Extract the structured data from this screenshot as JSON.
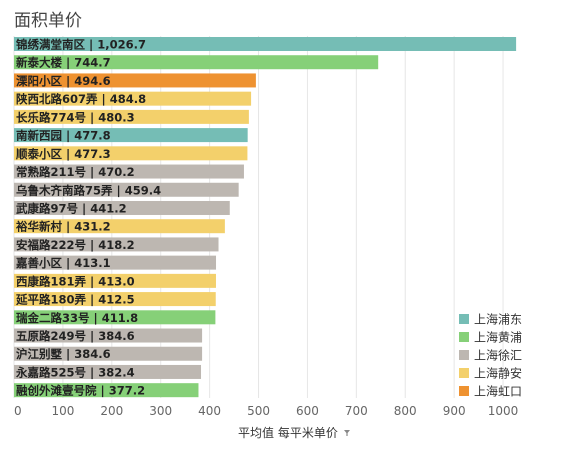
{
  "chart_data": {
    "type": "bar",
    "orientation": "horizontal",
    "title": "面积单价",
    "xlabel": "平均值 每平米单价",
    "ylabel": "",
    "xlim": [
      0,
      1050
    ],
    "xticks": [
      0,
      100,
      200,
      300,
      400,
      500,
      600,
      700,
      800,
      900,
      1000
    ],
    "grid": true,
    "legend_position": "bottom-right",
    "legend": [
      {
        "name": "上海浦东",
        "color": "#75BDB5"
      },
      {
        "name": "上海黄浦",
        "color": "#86D078"
      },
      {
        "name": "上海徐汇",
        "color": "#BDB7B1"
      },
      {
        "name": "上海静安",
        "color": "#F3D06B"
      },
      {
        "name": "上海虹口",
        "color": "#EE9231"
      }
    ],
    "bars": [
      {
        "label": "锦绣满堂南区 | 1,026.7",
        "category": "锦绣满堂南区",
        "value": 1026.7,
        "group": "上海浦东",
        "color": "#75BDB5"
      },
      {
        "label": "新泰大楼 | 744.7",
        "category": "新泰大楼",
        "value": 744.7,
        "group": "上海黄浦",
        "color": "#86D078"
      },
      {
        "label": "溧阳小区 | 494.6",
        "category": "溧阳小区",
        "value": 494.6,
        "group": "上海虹口",
        "color": "#EE9231"
      },
      {
        "label": "陕西北路607弄 | 484.8",
        "category": "陕西北路607弄",
        "value": 484.8,
        "group": "上海静安",
        "color": "#F3D06B"
      },
      {
        "label": "长乐路774号 | 480.3",
        "category": "长乐路774号",
        "value": 480.3,
        "group": "上海静安",
        "color": "#F3D06B"
      },
      {
        "label": "南新西园 | 477.8",
        "category": "南新西园",
        "value": 477.8,
        "group": "上海浦东",
        "color": "#75BDB5"
      },
      {
        "label": "顺泰小区 | 477.3",
        "category": "顺泰小区",
        "value": 477.3,
        "group": "上海静安",
        "color": "#F3D06B"
      },
      {
        "label": "常熟路211号 | 470.2",
        "category": "常熟路211号",
        "value": 470.2,
        "group": "上海徐汇",
        "color": "#BDB7B1"
      },
      {
        "label": "乌鲁木齐南路75弄 | 459.4",
        "category": "乌鲁木齐南路75弄",
        "value": 459.4,
        "group": "上海徐汇",
        "color": "#BDB7B1"
      },
      {
        "label": "武康路97号 | 441.2",
        "category": "武康路97号",
        "value": 441.2,
        "group": "上海徐汇",
        "color": "#BDB7B1"
      },
      {
        "label": "裕华新村 | 431.2",
        "category": "裕华新村",
        "value": 431.2,
        "group": "上海静安",
        "color": "#F3D06B"
      },
      {
        "label": "安福路222号 | 418.2",
        "category": "安福路222号",
        "value": 418.2,
        "group": "上海徐汇",
        "color": "#BDB7B1"
      },
      {
        "label": "嘉善小区 | 413.1",
        "category": "嘉善小区",
        "value": 413.1,
        "group": "上海徐汇",
        "color": "#BDB7B1"
      },
      {
        "label": "西康路181弄 | 413.0",
        "category": "西康路181弄",
        "value": 413.0,
        "group": "上海静安",
        "color": "#F3D06B"
      },
      {
        "label": "延平路180弄 | 412.5",
        "category": "延平路180弄",
        "value": 412.5,
        "group": "上海静安",
        "color": "#F3D06B"
      },
      {
        "label": "瑞金二路33号 | 411.8",
        "category": "瑞金二路33号",
        "value": 411.8,
        "group": "上海黄浦",
        "color": "#86D078"
      },
      {
        "label": "五原路249号 | 384.6",
        "category": "五原路249号",
        "value": 384.6,
        "group": "上海徐汇",
        "color": "#BDB7B1"
      },
      {
        "label": "沪江别墅 | 384.6",
        "category": "沪江别墅",
        "value": 384.6,
        "group": "上海徐汇",
        "color": "#BDB7B1"
      },
      {
        "label": "永嘉路525号 | 382.4",
        "category": "永嘉路525号",
        "value": 382.4,
        "group": "上海徐汇",
        "color": "#BDB7B1"
      },
      {
        "label": "融创外滩壹号院 | 377.2",
        "category": "融创外滩壹号院",
        "value": 377.2,
        "group": "上海黄浦",
        "color": "#86D078"
      }
    ]
  }
}
